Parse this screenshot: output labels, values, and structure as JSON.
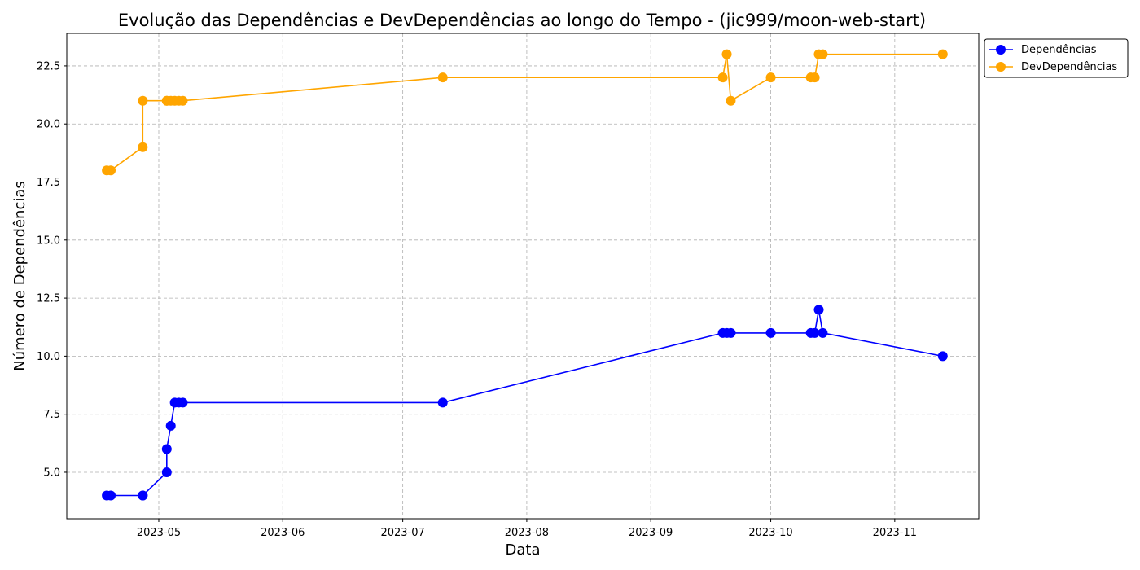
{
  "chart_data": {
    "type": "line",
    "title": "Evolução das Dependências e DevDependências ao longo do Tempo - (jic999/moon-web-start)",
    "xlabel": "Data",
    "ylabel": "Número de Dependências",
    "xlim": [
      "2023-04-08",
      "2023-11-22"
    ],
    "ylim": [
      3.0,
      23.9
    ],
    "x_ticks": [
      "2023-05",
      "2023-06",
      "2023-07",
      "2023-08",
      "2023-09",
      "2023-10",
      "2023-11"
    ],
    "x_tick_dates": [
      "2023-05-01",
      "2023-06-01",
      "2023-07-01",
      "2023-08-01",
      "2023-09-01",
      "2023-10-01",
      "2023-11-01"
    ],
    "y_ticks": [
      "5.0",
      "7.5",
      "10.0",
      "12.5",
      "15.0",
      "17.5",
      "20.0",
      "22.5"
    ],
    "y_tick_values": [
      5.0,
      7.5,
      10.0,
      12.5,
      15.0,
      17.5,
      20.0,
      22.5
    ],
    "grid": true,
    "legend_position": "upper-right-outside",
    "x": [
      "2023-04-18",
      "2023-04-19",
      "2023-04-27",
      "2023-04-27",
      "2023-05-03",
      "2023-05-03",
      "2023-05-04",
      "2023-05-05",
      "2023-05-06",
      "2023-05-07",
      "2023-07-11",
      "2023-09-19",
      "2023-09-20",
      "2023-09-21",
      "2023-10-01",
      "2023-10-11",
      "2023-10-12",
      "2023-10-13",
      "2023-10-14",
      "2023-11-13"
    ],
    "series": [
      {
        "name": "Dependências",
        "color": "#0000ff",
        "values": [
          4,
          4,
          4,
          4,
          5,
          6,
          7,
          8,
          8,
          8,
          8,
          11,
          11,
          11,
          11,
          11,
          11,
          12,
          11,
          10
        ]
      },
      {
        "name": "DevDependências",
        "color": "#ffa500",
        "values": [
          18,
          18,
          19,
          21,
          21,
          21,
          21,
          21,
          21,
          21,
          22,
          22,
          23,
          21,
          22,
          22,
          22,
          23,
          23,
          23
        ]
      }
    ]
  }
}
